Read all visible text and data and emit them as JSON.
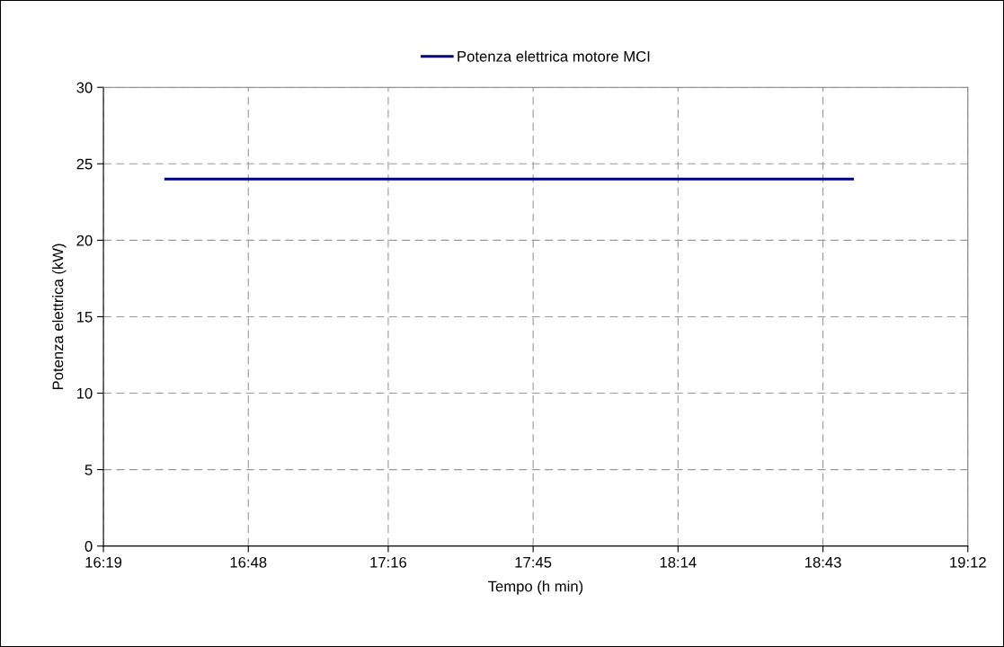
{
  "chart_data": {
    "type": "line",
    "xlabel": "Tempo (h min)",
    "ylabel": "Potenza elettrica (kW)",
    "xlim": [
      16.3167,
      19.2
    ],
    "xticks": [
      {
        "value": 16.3167,
        "label": "16:19"
      },
      {
        "value": 16.8,
        "label": "16:48"
      },
      {
        "value": 17.2667,
        "label": "17:16"
      },
      {
        "value": 17.75,
        "label": "17:45"
      },
      {
        "value": 18.2333,
        "label": "18:14"
      },
      {
        "value": 18.7167,
        "label": "18:43"
      },
      {
        "value": 19.2,
        "label": "19:12"
      }
    ],
    "ylim": [
      0,
      30
    ],
    "yticks": [
      0,
      5,
      10,
      15,
      20,
      25,
      30
    ],
    "grid": true,
    "legend": "top",
    "marker": "none",
    "line_style": "solid",
    "series": [
      {
        "name": "Potenza elettrica motore MCI",
        "color": "#000080",
        "x": [
          16.52,
          18.82
        ],
        "values": [
          24,
          24
        ]
      }
    ]
  }
}
